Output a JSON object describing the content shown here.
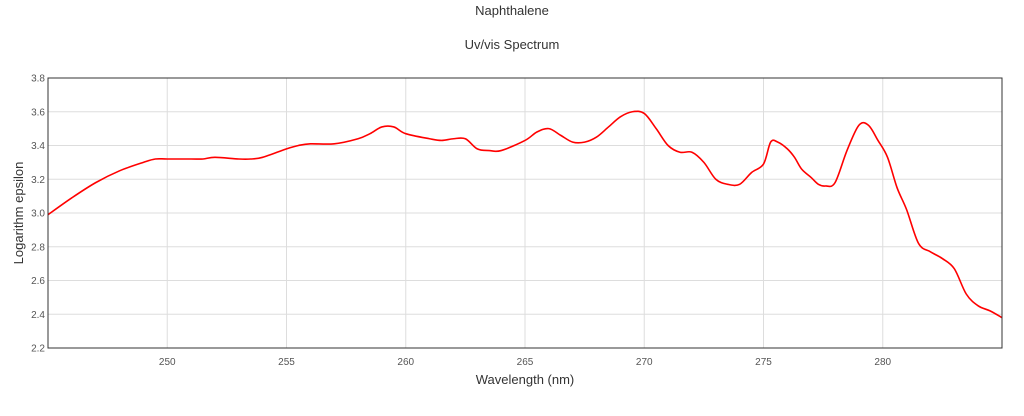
{
  "chart_data": {
    "type": "line",
    "title": "Naphthalene",
    "subtitle": "Uv/vis Spectrum",
    "xlabel": "Wavelength (nm)",
    "ylabel": "Logarithm epsilon",
    "xlim": [
      245,
      285
    ],
    "ylim": [
      2.2,
      3.8
    ],
    "xticks": [
      "250",
      "255",
      "260",
      "265",
      "270",
      "275",
      "280"
    ],
    "yticks": [
      "2.2",
      "2.4",
      "2.6",
      "2.8",
      "3.0",
      "3.2",
      "3.4",
      "3.6",
      "3.8"
    ],
    "grid": true,
    "series": [
      {
        "color": "#ff0000",
        "x": [
          245.0,
          246.0,
          247.0,
          248.0,
          249.0,
          249.5,
          250.0,
          251.0,
          251.5,
          252.0,
          253.0,
          253.5,
          254.0,
          255.0,
          255.5,
          256.0,
          257.0,
          258.0,
          258.5,
          259.0,
          259.5,
          260.0,
          261.0,
          261.5,
          262.0,
          262.5,
          263.0,
          263.5,
          264.0,
          265.0,
          265.5,
          266.0,
          266.5,
          267.0,
          267.5,
          268.0,
          268.5,
          269.0,
          269.5,
          270.0,
          270.5,
          271.0,
          271.5,
          272.0,
          272.5,
          273.0,
          273.5,
          274.0,
          274.5,
          275.0,
          275.3,
          275.6,
          276.0,
          276.3,
          276.6,
          277.0,
          277.3,
          277.6,
          278.0,
          278.5,
          279.0,
          279.4,
          279.8,
          280.2,
          280.6,
          281.0,
          281.5,
          282.0,
          282.5,
          283.0,
          283.5,
          284.0,
          284.5,
          285.0
        ],
        "y": [
          2.99,
          3.09,
          3.18,
          3.25,
          3.3,
          3.32,
          3.32,
          3.32,
          3.32,
          3.33,
          3.32,
          3.32,
          3.33,
          3.38,
          3.4,
          3.41,
          3.41,
          3.44,
          3.47,
          3.51,
          3.51,
          3.47,
          3.44,
          3.43,
          3.44,
          3.44,
          3.38,
          3.37,
          3.37,
          3.43,
          3.48,
          3.5,
          3.46,
          3.42,
          3.42,
          3.45,
          3.51,
          3.57,
          3.6,
          3.59,
          3.5,
          3.4,
          3.36,
          3.36,
          3.3,
          3.2,
          3.17,
          3.17,
          3.24,
          3.29,
          3.42,
          3.42,
          3.38,
          3.33,
          3.26,
          3.21,
          3.17,
          3.16,
          3.18,
          3.37,
          3.52,
          3.52,
          3.43,
          3.33,
          3.15,
          3.02,
          2.82,
          2.77,
          2.73,
          2.67,
          2.52,
          2.45,
          2.42,
          2.38
        ]
      }
    ]
  }
}
